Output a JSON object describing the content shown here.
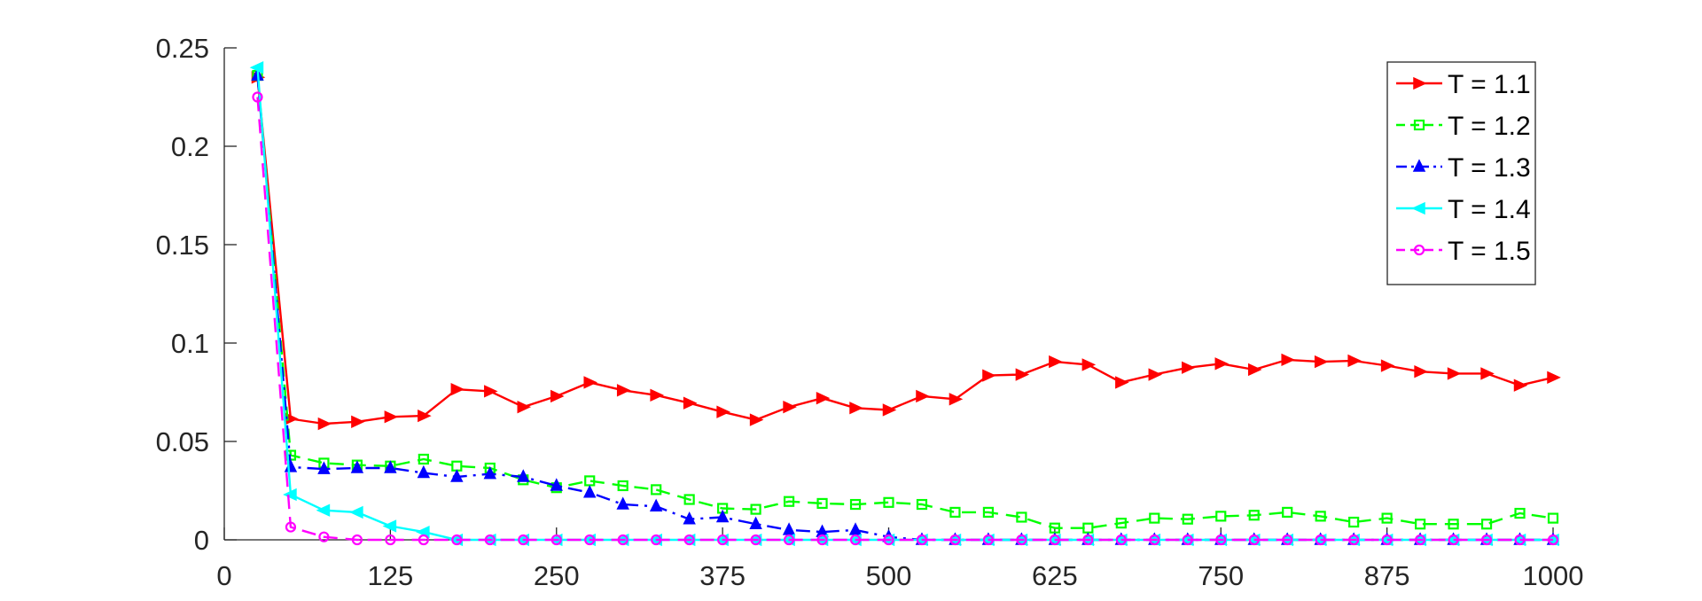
{
  "chart_data": {
    "type": "line",
    "title": "",
    "xlabel": "",
    "ylabel": "",
    "xlim": [
      0,
      1000
    ],
    "ylim": [
      0,
      0.25
    ],
    "x_ticks": [
      0,
      125,
      250,
      375,
      500,
      625,
      750,
      875,
      1000
    ],
    "x_tick_labels": [
      "0",
      "125",
      "250",
      "375",
      "500",
      "625",
      "750",
      "875",
      "1000"
    ],
    "y_ticks": [
      0,
      0.05,
      0.1,
      0.15,
      0.2,
      0.25
    ],
    "y_tick_labels": [
      "0",
      "0.05",
      "0.1",
      "0.15",
      "0.2",
      "0.25"
    ],
    "grid": false,
    "legend_position": "top-right",
    "x": [
      25,
      50,
      75,
      100,
      125,
      150,
      175,
      200,
      225,
      250,
      275,
      300,
      325,
      350,
      375,
      400,
      425,
      450,
      475,
      500,
      525,
      550,
      575,
      600,
      625,
      650,
      675,
      700,
      725,
      750,
      775,
      800,
      825,
      850,
      875,
      900,
      925,
      950,
      975,
      1000
    ],
    "series": [
      {
        "name": "T = 1.1",
        "color": "#ff0000",
        "line_style": "solid",
        "marker": "triangle-right",
        "values": [
          0.235,
          0.0615,
          0.059,
          0.06,
          0.0625,
          0.063,
          0.0765,
          0.0755,
          0.0675,
          0.073,
          0.08,
          0.076,
          0.0735,
          0.0695,
          0.065,
          0.061,
          0.0675,
          0.072,
          0.067,
          0.066,
          0.073,
          0.0715,
          0.0835,
          0.084,
          0.0905,
          0.089,
          0.08,
          0.084,
          0.0875,
          0.0895,
          0.0865,
          0.0915,
          0.0905,
          0.091,
          0.0885,
          0.0855,
          0.0845,
          0.0845,
          0.0785,
          0.0825
        ]
      },
      {
        "name": "T = 1.2",
        "color": "#00ff00",
        "line_style": "dashed",
        "marker": "square",
        "values": [
          0.236,
          0.043,
          0.039,
          0.038,
          0.0375,
          0.041,
          0.0375,
          0.0365,
          0.0305,
          0.0265,
          0.03,
          0.0275,
          0.0255,
          0.0205,
          0.016,
          0.0155,
          0.0195,
          0.0185,
          0.018,
          0.019,
          0.018,
          0.014,
          0.014,
          0.0115,
          0.006,
          0.006,
          0.0085,
          0.011,
          0.0105,
          0.012,
          0.0125,
          0.014,
          0.012,
          0.009,
          0.011,
          0.008,
          0.008,
          0.008,
          0.0135,
          0.011
        ]
      },
      {
        "name": "T = 1.3",
        "color": "#0000ff",
        "line_style": "dashdot",
        "marker": "triangle-up",
        "values": [
          0.236,
          0.037,
          0.036,
          0.0365,
          0.0365,
          0.034,
          0.032,
          0.0335,
          0.032,
          0.0275,
          0.024,
          0.018,
          0.017,
          0.0105,
          0.0115,
          0.008,
          0.005,
          0.004,
          0.005,
          0.0015,
          0,
          0,
          0,
          0,
          0,
          0,
          0,
          0,
          0,
          0,
          0,
          0,
          0,
          0,
          0,
          0,
          0,
          0,
          0,
          0
        ]
      },
      {
        "name": "T = 1.4",
        "color": "#00ffff",
        "line_style": "solid",
        "marker": "triangle-left",
        "values": [
          0.24,
          0.023,
          0.015,
          0.014,
          0.007,
          0.004,
          0,
          0,
          0,
          0,
          0,
          0,
          0,
          0,
          0,
          0,
          0,
          0,
          0,
          0,
          0,
          0,
          0,
          0,
          0,
          0,
          0,
          0,
          0,
          0,
          0,
          0,
          0,
          0,
          0,
          0,
          0,
          0,
          0,
          0
        ]
      },
      {
        "name": "T = 1.5",
        "color": "#ff00ff",
        "line_style": "dashed",
        "marker": "circle",
        "values": [
          0.225,
          0.0065,
          0.0015,
          0,
          0,
          0,
          0,
          0,
          0,
          0,
          0,
          0,
          0,
          0,
          0,
          0,
          0,
          0,
          0,
          0,
          0,
          0,
          0,
          0,
          0,
          0,
          0,
          0,
          0,
          0,
          0,
          0,
          0,
          0,
          0,
          0,
          0,
          0,
          0,
          0
        ]
      }
    ]
  }
}
